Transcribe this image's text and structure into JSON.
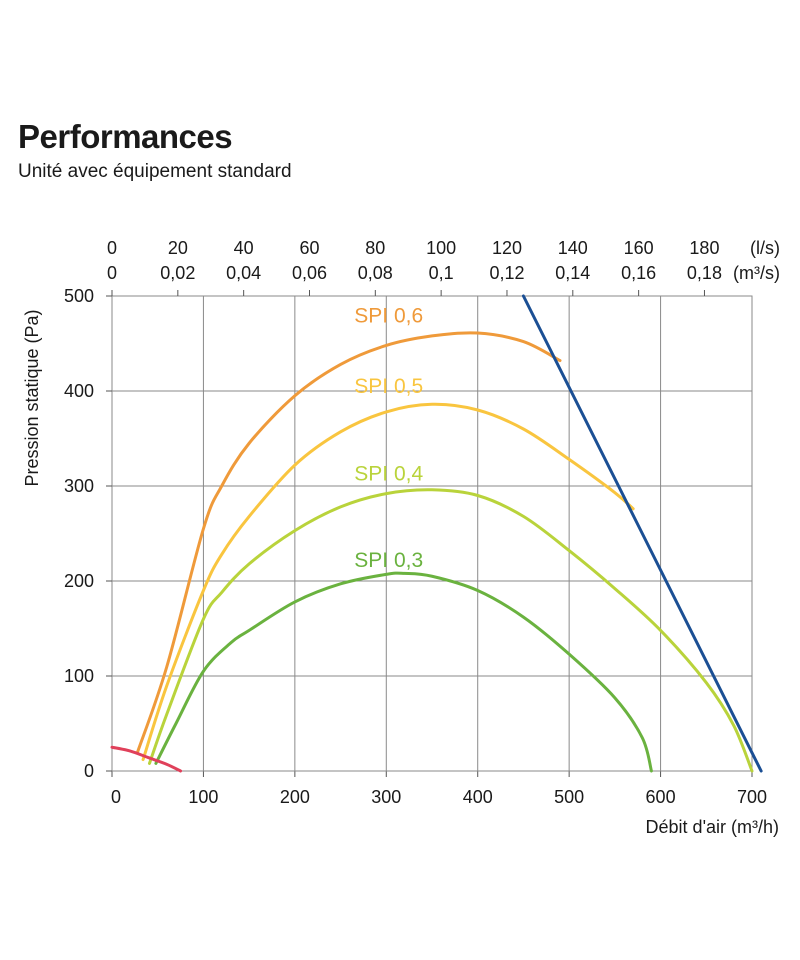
{
  "header": {
    "title": "Performances",
    "subtitle": "Unité avec équipement standard"
  },
  "chart_data": {
    "type": "line",
    "xlabel": "Débit d'air (m³/h)",
    "ylabel": "Pression statique  (Pa)",
    "xlim": [
      0,
      700
    ],
    "ylim": [
      0,
      500
    ],
    "grid": true,
    "x_ticks": [
      "0",
      "100",
      "200",
      "300",
      "400",
      "500",
      "600",
      "700"
    ],
    "y_ticks": [
      "0",
      "100",
      "200",
      "300",
      "400",
      "500"
    ],
    "top_axis": {
      "ls_ticks": [
        "0",
        "20",
        "40",
        "60",
        "80",
        "100",
        "120",
        "140",
        "160",
        "180"
      ],
      "ls_unit": "(l/s)",
      "m3s_ticks": [
        "0",
        "0,02",
        "0,04",
        "0,06",
        "0,08",
        "0,1",
        "0,12",
        "0,14",
        "0,16",
        "0,18"
      ],
      "m3s_unit": "(m³/s)"
    },
    "series": [
      {
        "name": "SPI 0,6",
        "color": "#ef9a3a",
        "label_at": [
          265,
          472
        ],
        "points": [
          [
            28,
            20
          ],
          [
            60,
            110
          ],
          [
            100,
            255
          ],
          [
            120,
            300
          ],
          [
            150,
            345
          ],
          [
            200,
            395
          ],
          [
            250,
            428
          ],
          [
            300,
            448
          ],
          [
            350,
            458
          ],
          [
            400,
            461
          ],
          [
            450,
            452
          ],
          [
            490,
            432
          ]
        ]
      },
      {
        "name": "SPI 0,5",
        "color": "#f9c53f",
        "label_at": [
          265,
          398
        ],
        "points": [
          [
            34,
            12
          ],
          [
            60,
            90
          ],
          [
            100,
            190
          ],
          [
            120,
            228
          ],
          [
            150,
            268
          ],
          [
            200,
            322
          ],
          [
            250,
            357
          ],
          [
            300,
            378
          ],
          [
            350,
            386
          ],
          [
            400,
            380
          ],
          [
            450,
            360
          ],
          [
            500,
            328
          ],
          [
            550,
            293
          ],
          [
            570,
            276
          ]
        ]
      },
      {
        "name": "SPI 0,4",
        "color": "#b9d33b",
        "label_at": [
          265,
          306
        ],
        "points": [
          [
            41,
            8
          ],
          [
            60,
            60
          ],
          [
            100,
            160
          ],
          [
            120,
            188
          ],
          [
            150,
            218
          ],
          [
            200,
            253
          ],
          [
            250,
            278
          ],
          [
            300,
            292
          ],
          [
            350,
            296
          ],
          [
            400,
            290
          ],
          [
            450,
            268
          ],
          [
            500,
            232
          ],
          [
            550,
            192
          ],
          [
            600,
            148
          ],
          [
            650,
            93
          ],
          [
            680,
            48
          ],
          [
            700,
            0
          ]
        ]
      },
      {
        "name": "SPI 0,3",
        "color": "#6ab23f",
        "label_at": [
          265,
          215
        ],
        "points": [
          [
            48,
            8
          ],
          [
            70,
            50
          ],
          [
            100,
            105
          ],
          [
            130,
            135
          ],
          [
            150,
            148
          ],
          [
            200,
            178
          ],
          [
            250,
            197
          ],
          [
            300,
            207
          ],
          [
            320,
            208
          ],
          [
            350,
            205
          ],
          [
            400,
            190
          ],
          [
            450,
            162
          ],
          [
            500,
            123
          ],
          [
            550,
            77
          ],
          [
            580,
            35
          ],
          [
            590,
            0
          ]
        ]
      },
      {
        "name": "",
        "color": "#e0405a",
        "points": [
          [
            0,
            25
          ],
          [
            20,
            21
          ],
          [
            40,
            14
          ],
          [
            60,
            7
          ],
          [
            75,
            0
          ]
        ]
      },
      {
        "name": "",
        "color": "#1b4f94",
        "points": [
          [
            450,
            500
          ],
          [
            710,
            0
          ]
        ]
      }
    ]
  }
}
